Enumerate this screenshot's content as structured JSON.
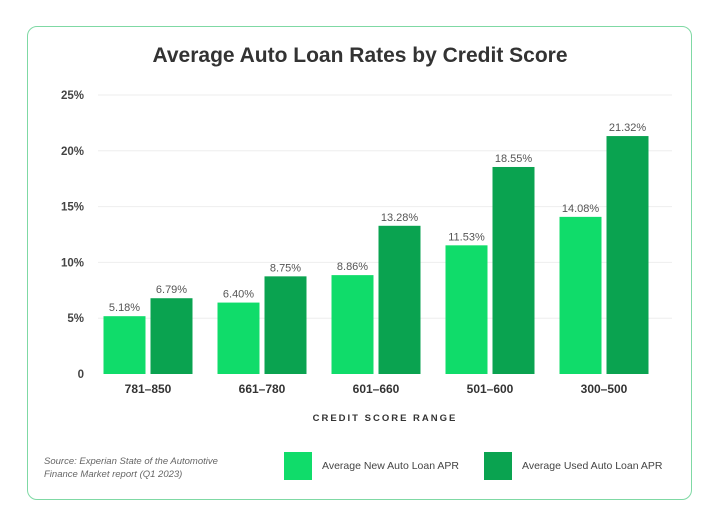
{
  "chart_data": {
    "type": "bar",
    "title": "Average Auto Loan Rates by Credit Score",
    "xlabel": "CREDIT SCORE RANGE",
    "ylabel": "",
    "ylim": [
      0,
      25
    ],
    "yticks": [
      "0",
      "5%",
      "10%",
      "15%",
      "20%",
      "25%"
    ],
    "ytick_values": [
      0,
      5,
      10,
      15,
      20,
      25
    ],
    "grid": true,
    "legend_position": "bottom-right",
    "categories": [
      "781–850",
      "661–780",
      "601–660",
      "501–600",
      "300–500"
    ],
    "series": [
      {
        "name": "Average New Auto Loan APR",
        "color": "#10dc6a",
        "values": [
          5.18,
          6.4,
          8.86,
          11.53,
          14.08
        ],
        "labels": [
          "5.18%",
          "6.40%",
          "8.86%",
          "11.53%",
          "14.08%"
        ]
      },
      {
        "name": "Average Used Auto Loan APR",
        "color": "#0aa350",
        "values": [
          6.79,
          8.75,
          13.28,
          18.55,
          21.32
        ],
        "labels": [
          "6.79%",
          "8.75%",
          "13.28%",
          "18.55%",
          "21.32%"
        ]
      }
    ],
    "source": "Source: Experian State of the Automotive Finance Market report (Q1 2023)"
  }
}
